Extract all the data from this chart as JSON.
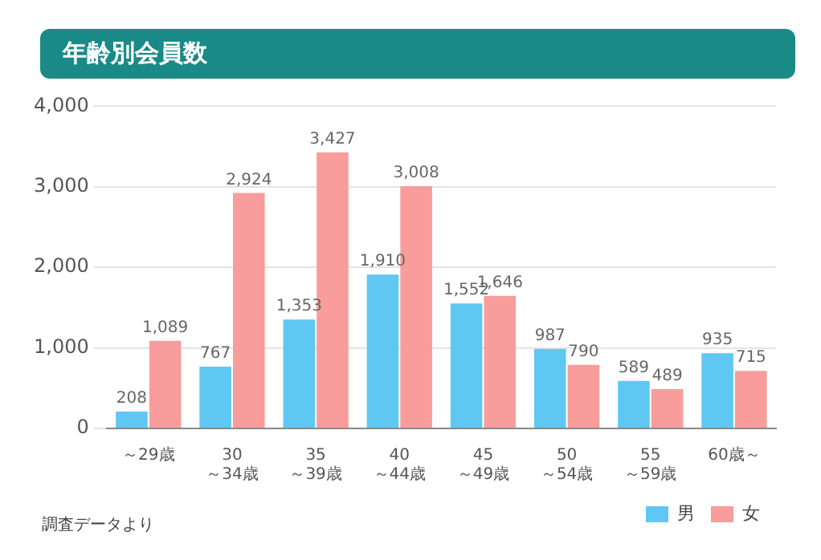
{
  "chart_data": {
    "type": "bar",
    "title": "年齢別会員数",
    "categories": [
      "～29歳",
      "30～34歳",
      "35～39歳",
      "40～44歳",
      "45～49歳",
      "50～54歳",
      "55～59歳",
      "60歳～"
    ],
    "series": [
      {
        "name": "男",
        "color": "#5ec8f2",
        "values": [
          208,
          767,
          1353,
          1910,
          1552,
          987,
          589,
          935
        ],
        "value_labels": [
          "208",
          "767",
          "1,353",
          "1,910",
          "1,552",
          "987",
          "589",
          "935"
        ]
      },
      {
        "name": "女",
        "color": "#f99c9c",
        "values": [
          1089,
          2924,
          3427,
          3008,
          1646,
          790,
          489,
          715
        ],
        "value_labels": [
          "1,089",
          "2,924",
          "3,427",
          "3,008",
          "1,646",
          "790",
          "489",
          "715"
        ]
      }
    ],
    "ylim": [
      0,
      4000
    ],
    "yticks": [
      0,
      {
        "value": 1000,
        "label": "1,000"
      },
      {
        "value": 2000,
        "label": "2,000"
      },
      {
        "value": 3000,
        "label": "3,000"
      },
      {
        "value": 4000,
        "label": "4,000"
      }
    ],
    "grid": "y",
    "legend": "bottom right",
    "annotations": [
      "調査データより"
    ]
  }
}
